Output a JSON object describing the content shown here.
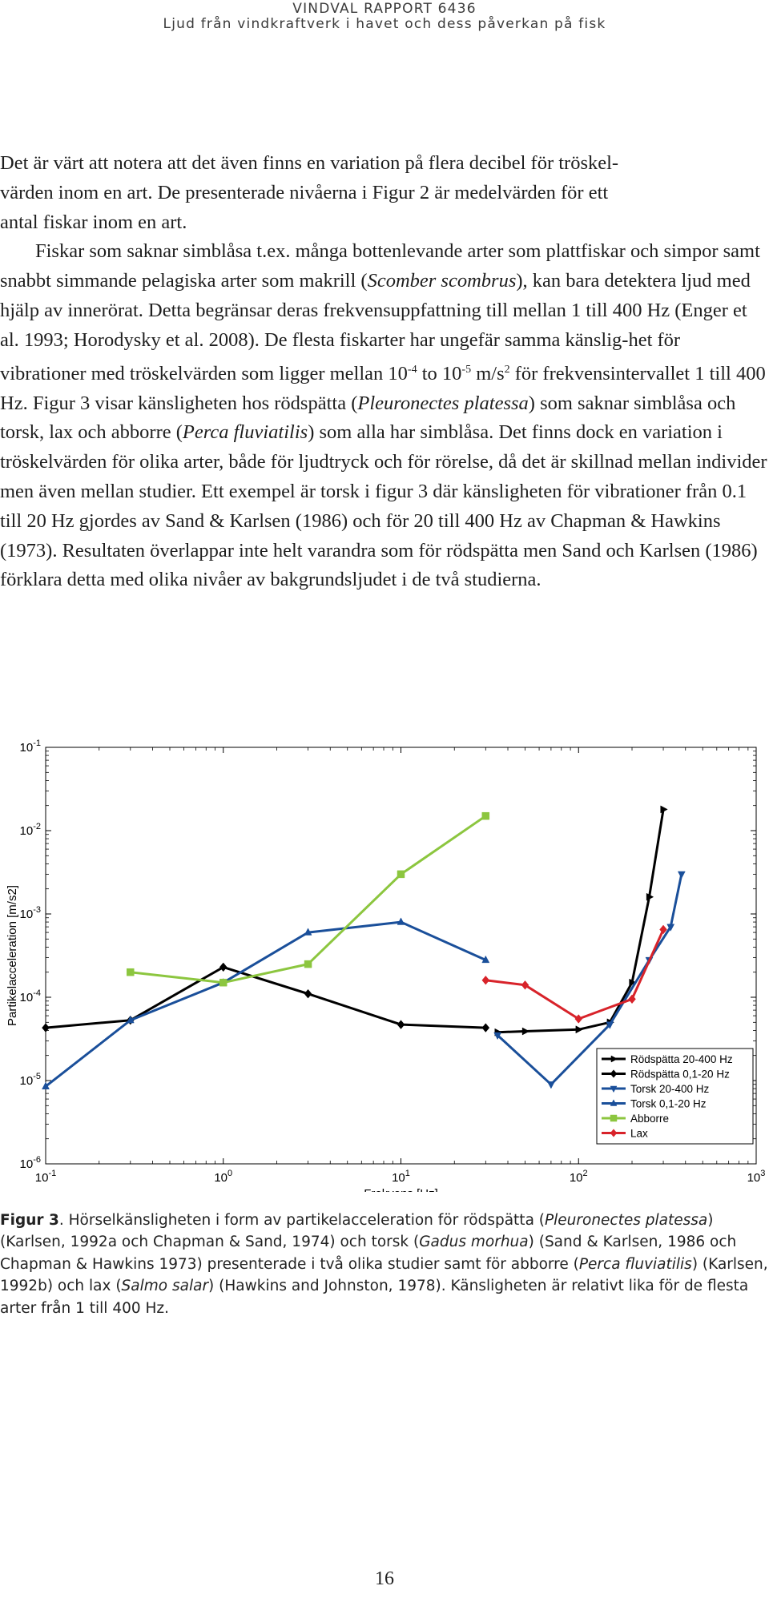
{
  "header": {
    "report": "VINDVAL RAPPORT 6436",
    "subtitle": "Ljud från vindkraftverk i havet och dess påverkan på fisk"
  },
  "body": {
    "p1": [
      "Det är värt att notera att det även finns en variation på flera decibel för tröskel-",
      "värden inom en art. De presenterade nivåerna i Figur 2 är medelvärden för ett",
      "antal fiskar inom en art."
    ],
    "p2": {
      "s1": "Fiskar som saknar simblåsa t.ex. många bottenlevande arter som plattfiskar och simpor samt snabbt simmande pelagiska arter som makrill (",
      "i1": "Scomber scombrus",
      "s2": "), kan bara detektera ljud med hjälp av innerörat. Detta begränsar deras frekvensuppfattning till mellan 1 till 400 Hz (Enger et al. 1993; Horodysky et al. 2008). De flesta fiskarter har ungefär samma känslig-het för vibrationer med tröskelvärden som ligger mellan 10",
      "sup1": "-4",
      "s3": " to 10",
      "sup2": "-5",
      "s4": " m/s",
      "sup3": "2",
      "s5": " för frekvensintervallet 1 till 400 Hz. Figur 3 visar känsligheten hos rödspätta (",
      "i2": "Pleuronectes platessa",
      "s6": ") som saknar simblåsa och torsk, lax och abborre (",
      "i3": "Perca fluviatilis",
      "s7": ") som alla har simblåsa. Det finns dock en variation i tröskelvärden för olika arter, både för ljudtryck och för rörelse, då det är skillnad mellan individer men även mellan studier. Ett exempel är torsk i figur 3 där känsligheten för vibrationer från 0.1 till 20 Hz gjordes av Sand & Karlsen (1986) och för 20 till 400 Hz av Chapman & Hawkins (1973). Resultaten överlappar inte helt varandra som för rödspätta men Sand och Karlsen (1986) förklara detta med olika nivåer av bakgrundsljudet i de två studierna."
    }
  },
  "chart_data": {
    "type": "line",
    "xlabel": "Frekvens [Hz]",
    "ylabel": "Partikelacceleration [m/s2]",
    "xscale": "log",
    "yscale": "log",
    "xlim": [
      0.1,
      1000
    ],
    "ylim": [
      1e-06,
      0.1
    ],
    "x_ticks": [
      {
        "v": 0.1,
        "b": "10",
        "e": "-1"
      },
      {
        "v": 1,
        "b": "10",
        "e": "0"
      },
      {
        "v": 10,
        "b": "10",
        "e": "1"
      },
      {
        "v": 100,
        "b": "10",
        "e": "2"
      },
      {
        "v": 1000,
        "b": "10",
        "e": "3"
      }
    ],
    "y_ticks": [
      {
        "v": 1e-06,
        "b": "10",
        "e": "-6"
      },
      {
        "v": 1e-05,
        "b": "10",
        "e": "-5"
      },
      {
        "v": 0.0001,
        "b": "10",
        "e": "-4"
      },
      {
        "v": 0.001,
        "b": "10",
        "e": "-3"
      },
      {
        "v": 0.01,
        "b": "10",
        "e": "-2"
      },
      {
        "v": 0.1,
        "b": "10",
        "e": "-1"
      }
    ],
    "legend_position": "bottom-right",
    "series": [
      {
        "name": "Rödspätta 20-400 Hz",
        "color": "#000000",
        "marker": "triangle-right",
        "points": [
          [
            35,
            3.8e-05
          ],
          [
            50,
            3.9e-05
          ],
          [
            100,
            4.1e-05
          ],
          [
            150,
            5e-05
          ],
          [
            200,
            0.00015
          ],
          [
            250,
            0.0016
          ],
          [
            300,
            0.018
          ]
        ]
      },
      {
        "name": "Rödspätta 0,1-20 Hz",
        "color": "#000000",
        "marker": "diamond",
        "points": [
          [
            0.1,
            4.3e-05
          ],
          [
            0.3,
            5.3e-05
          ],
          [
            1.0,
            0.00023
          ],
          [
            3.0,
            0.00011
          ],
          [
            10,
            4.7e-05
          ],
          [
            30,
            4.3e-05
          ]
        ]
      },
      {
        "name": "Torsk 20-400 Hz",
        "color": "#1a4f9a",
        "marker": "triangle-down",
        "points": [
          [
            35,
            3.5e-05
          ],
          [
            70,
            9e-06
          ],
          [
            150,
            4.7e-05
          ],
          [
            250,
            0.00028
          ],
          [
            330,
            0.0007
          ],
          [
            380,
            0.003
          ]
        ]
      },
      {
        "name": "Torsk 0,1-20 Hz",
        "color": "#1a4f9a",
        "marker": "triangle-up",
        "points": [
          [
            0.1,
            8.5e-06
          ],
          [
            0.3,
            5.3e-05
          ],
          [
            1.0,
            0.00015
          ],
          [
            3.0,
            0.0006
          ],
          [
            10,
            0.0008
          ],
          [
            30,
            0.00028
          ]
        ]
      },
      {
        "name": "Abborre",
        "color": "#8cc63f",
        "marker": "square",
        "points": [
          [
            0.3,
            0.0002
          ],
          [
            1.0,
            0.00015
          ],
          [
            3.0,
            0.00025
          ],
          [
            10,
            0.003
          ],
          [
            30,
            0.015
          ]
        ]
      },
      {
        "name": "Lax",
        "color": "#d8232a",
        "marker": "diamond",
        "points": [
          [
            30,
            0.00016
          ],
          [
            50,
            0.00014
          ],
          [
            100,
            5.5e-05
          ],
          [
            200,
            9.5e-05
          ],
          [
            300,
            0.00065
          ]
        ]
      }
    ]
  },
  "caption": {
    "label": "Figur 3",
    "t1": ". Hörselkänsligheten i form av partikelacceleration för rödspätta (",
    "i1": "Pleuronectes platessa",
    "t2": ") (Karlsen, 1992a och Chapman & Sand, 1974) och torsk (",
    "i2": "Gadus morhua",
    "t3": ") (Sand & Karlsen, 1986 och Chapman & Hawkins 1973) presenterade i två olika studier samt för abborre (",
    "i3": "Perca fluviatilis",
    "t4": ") (Karlsen, 1992b) och lax (",
    "i4": "Salmo salar",
    "t5": ") (Hawkins and Johnston, 1978). Känsligheten är relativt lika för de flesta arter från 1 till 400 Hz."
  },
  "page_number": "16"
}
